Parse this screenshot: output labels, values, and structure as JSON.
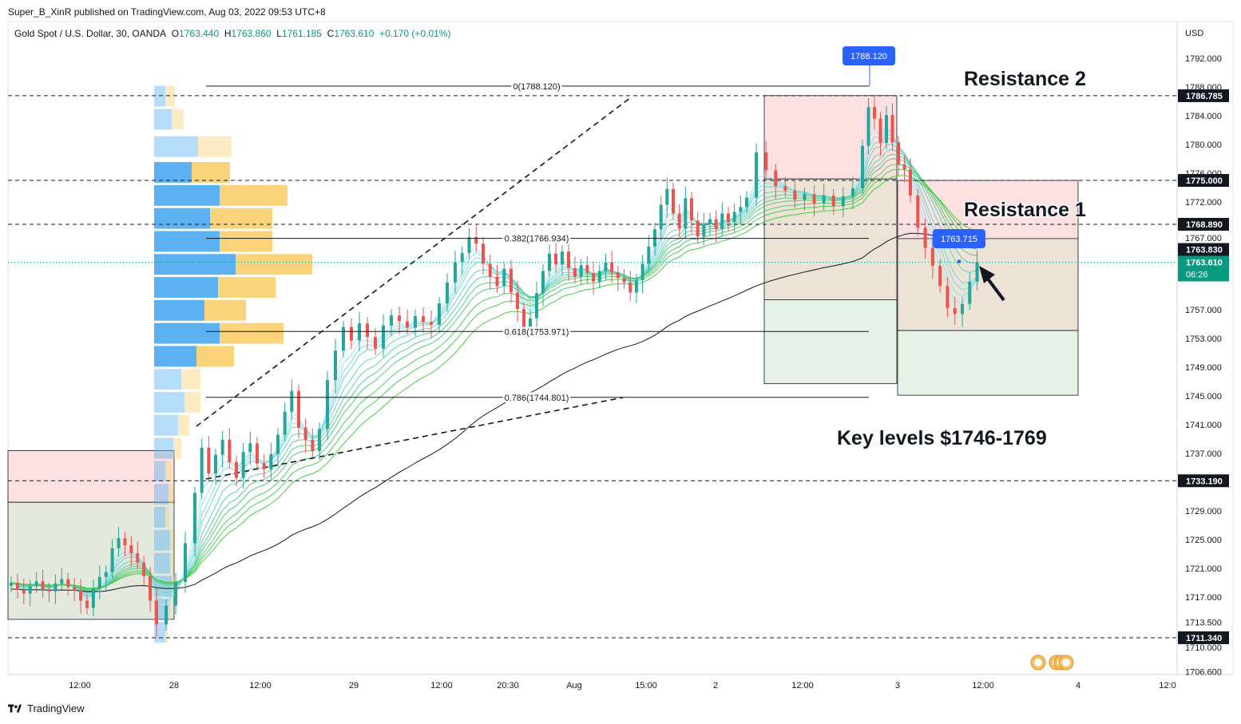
{
  "header": {
    "published": "Super_B_XinR published on TradingView.com, Aug 03, 2022 09:53 UTC+8",
    "symbol": "Gold Spot / U.S. Dollar, 30, OANDA",
    "open_label": "O",
    "open": "1763.440",
    "high_label": "H",
    "high": "1763.860",
    "low_label": "L",
    "low": "1761.185",
    "close_label": "C",
    "close": "1763.610",
    "change": "+0.170 (+0.01%)"
  },
  "footer": {
    "brand": "TradingView"
  },
  "colors": {
    "up": "#26a69a",
    "down": "#ef5350",
    "accent": "#2962ff",
    "last_price": "#089981"
  },
  "chart_data": {
    "type": "candlestick",
    "currency": "USD",
    "ylim": [
      1706.6,
      1795.0
    ],
    "y_ticks": [
      "1792.000",
      "1788.000",
      "1784.000",
      "1780.000",
      "1776.000",
      "1772.000",
      "1767.000",
      "1763.830",
      "1757.000",
      "1753.000",
      "1749.000",
      "1745.000",
      "1741.000",
      "1737.000",
      "1733.190",
      "1729.000",
      "1725.000",
      "1721.000",
      "1717.000",
      "1713.500",
      "1710.000",
      "1706.600"
    ],
    "x_ticks": [
      "12:00",
      "28",
      "12:00",
      "29",
      "12:00",
      "20:30",
      "Aug",
      "15:00",
      "2",
      "12:00",
      "3",
      "12:00",
      "4",
      "12:0"
    ],
    "horizontal_levels": [
      {
        "price": 1786.785,
        "label": "1786.785"
      },
      {
        "price": 1775.0,
        "label": "1775.000"
      },
      {
        "price": 1768.89,
        "label": "1768.890"
      },
      {
        "price": 1733.19,
        "label": "1733.190"
      },
      {
        "price": 1711.34,
        "label": "1711.340"
      }
    ],
    "last_price": {
      "value": 1763.61,
      "label": "1763.610",
      "countdown": "06:26"
    },
    "price_callouts": [
      {
        "price": 1788.12,
        "label": "1788.120"
      },
      {
        "price": 1763.715,
        "label": "1763.715"
      }
    ],
    "fibonacci": [
      {
        "ratio": "0",
        "price": 1788.12,
        "label": "0(1788.120)"
      },
      {
        "ratio": "0.382",
        "price": 1766.934,
        "label": "0.382(1766.934)"
      },
      {
        "ratio": "0.618",
        "price": 1753.971,
        "label": "0.618(1753.971)"
      },
      {
        "ratio": "0.786",
        "price": 1744.801,
        "label": "0.786(1744.801)"
      }
    ],
    "annotations": [
      {
        "text": "Resistance 2"
      },
      {
        "text": "Resistance 1"
      },
      {
        "text": "Key levels $1746-1769"
      }
    ],
    "candles_close": [
      1719,
      1718,
      1717.5,
      1718.5,
      1719.2,
      1718.1,
      1717.8,
      1718.9,
      1719.5,
      1718.4,
      1717.9,
      1716.5,
      1715.5,
      1718.2,
      1719.8,
      1720.5,
      1723.8,
      1725.2,
      1724.2,
      1723.1,
      1721.8,
      1719.9,
      1716.5,
      1713.2,
      1715.8,
      1719.1,
      1724.5,
      1731.5,
      1737.8,
      1734.2,
      1736.8,
      1738.9,
      1735.8,
      1733.6,
      1737.2,
      1738.4,
      1735.6,
      1734.8,
      1736.9,
      1739.6,
      1742.8,
      1745.7,
      1740.6,
      1738.9,
      1737.3,
      1740.4,
      1747.2,
      1751.3,
      1754.6,
      1752.7,
      1755.1,
      1753.2,
      1751.6,
      1754.8,
      1756.2,
      1755.4,
      1754.5,
      1756.1,
      1755.3,
      1754.9,
      1757.9,
      1760.8,
      1763.6,
      1764.9,
      1767.1,
      1766.2,
      1763.4,
      1761.6,
      1760.3,
      1762.7,
      1759.4,
      1757.1,
      1754.6,
      1755.8,
      1759.3,
      1762.4,
      1764.8,
      1763.3,
      1765.1,
      1762.8,
      1761.6,
      1763.2,
      1762.1,
      1760.9,
      1762.4,
      1763.6,
      1762.2,
      1761.4,
      1760.8,
      1759.4,
      1761.1,
      1763.4,
      1765.8,
      1768.2,
      1771.6,
      1773.8,
      1770.4,
      1768.3,
      1772.5,
      1769.4,
      1767.2,
      1768.9,
      1769.6,
      1768.2,
      1770.4,
      1769.2,
      1770.6,
      1771.3,
      1772.6,
      1778.9,
      1776.4,
      1774.2,
      1773.6,
      1772.3,
      1773.1,
      1771.8,
      1772.9,
      1771.4,
      1772.8,
      1773.9,
      1779.8,
      1785.2,
      1783.6,
      1780.2,
      1784.1,
      1780.3,
      1777.2,
      1776.5,
      1772.9,
      1768.4,
      1765.6,
      1763.1,
      1760.3,
      1757.2,
      1756.4,
      1757.8,
      1760.9,
      1763.6
    ]
  }
}
